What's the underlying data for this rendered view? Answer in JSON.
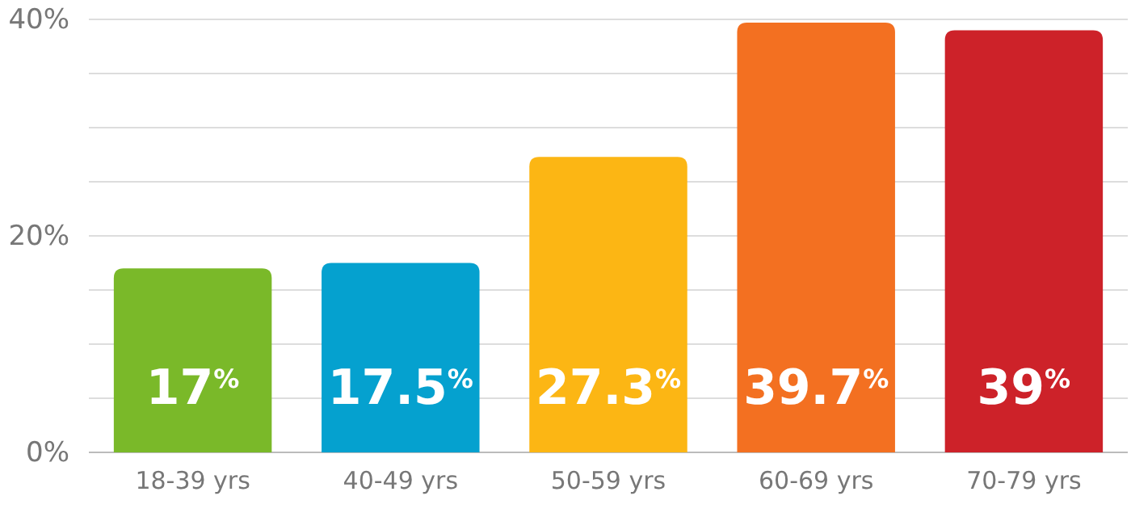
{
  "chart_data": {
    "type": "bar",
    "categories": [
      "18-39 yrs",
      "40-49 yrs",
      "50-59 yrs",
      "60-69 yrs",
      "70-79 yrs"
    ],
    "values": [
      17,
      17.5,
      27.3,
      39.7,
      39
    ],
    "colors": [
      "#7ab929",
      "#05a1cf",
      "#fcb614",
      "#f37021",
      "#cd2229"
    ],
    "value_labels": [
      "17$^{%}$",
      "17.5$^{%}$",
      "27.3$^{%}$",
      "39.7$^{%}$",
      "39$^{%}$"
    ],
    "ylim": [
      0,
      40
    ],
    "yticks": [
      {
        "value": 0,
        "label": "0%"
      },
      {
        "value": 5,
        "label": null
      },
      {
        "value": 10,
        "label": null
      },
      {
        "value": 15,
        "label": null
      },
      {
        "value": 20,
        "label": "20%"
      },
      {
        "value": 25,
        "label": null
      },
      {
        "value": 30,
        "label": null
      },
      {
        "value": 35,
        "label": null
      },
      {
        "value": 40,
        "label": "40%"
      }
    ],
    "grid": "y"
  }
}
